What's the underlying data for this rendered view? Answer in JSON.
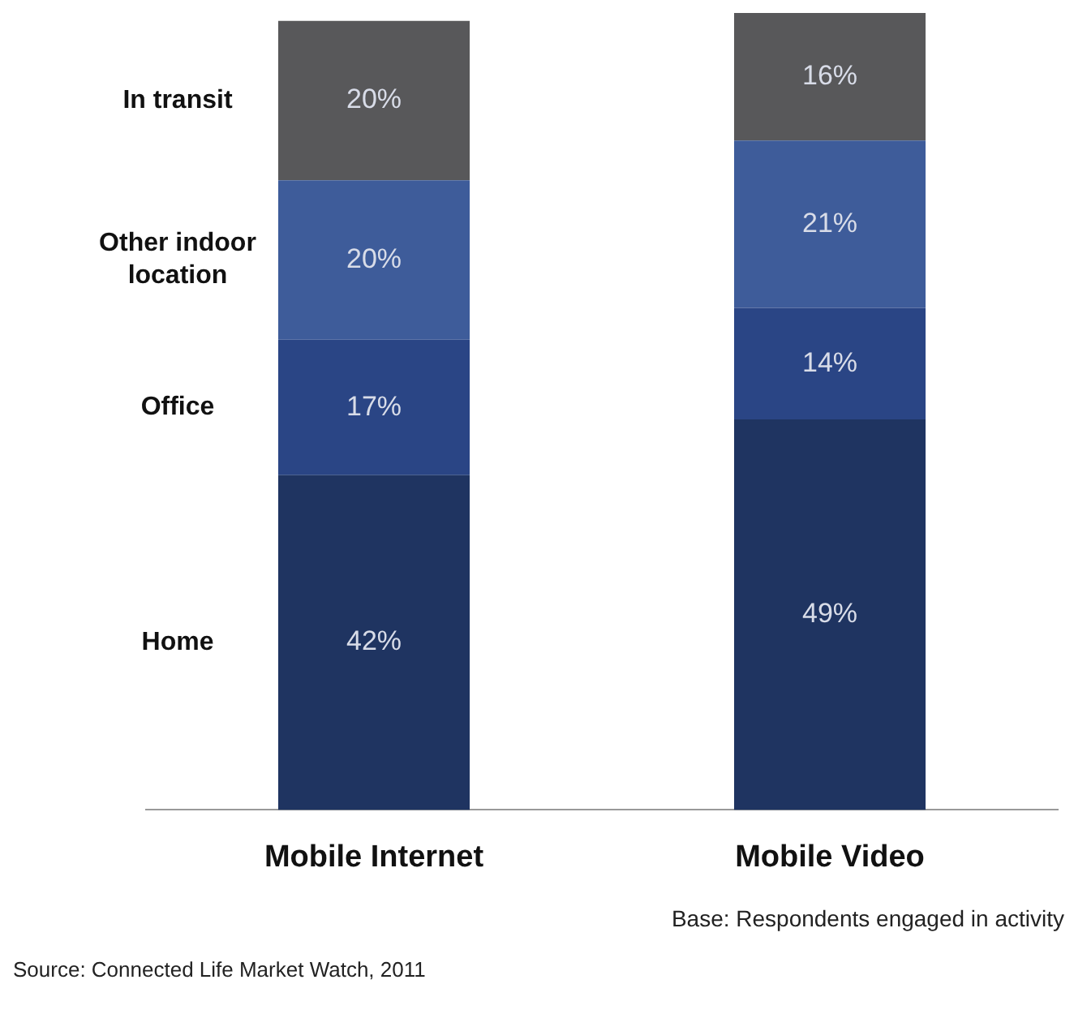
{
  "chart_data": {
    "type": "bar",
    "stacked": true,
    "categories": [
      "Mobile Internet",
      "Mobile Video"
    ],
    "series": [
      {
        "name": "Home",
        "color": "#1f3461",
        "values": [
          42,
          49
        ],
        "value_labels": [
          "42%",
          "49%"
        ]
      },
      {
        "name": "Office",
        "color": "#2a4585",
        "values": [
          17,
          14
        ],
        "value_labels": [
          "17%",
          "14%"
        ]
      },
      {
        "name": "Other indoor location",
        "color": "#3e5c9a",
        "values": [
          20,
          21
        ],
        "value_labels": [
          "20%",
          "21%"
        ]
      },
      {
        "name": "In transit",
        "color": "#58585a",
        "values": [
          20,
          16
        ],
        "value_labels": [
          "20%",
          "16%"
        ]
      }
    ],
    "ylim": [
      0,
      100
    ],
    "tick_labels": "x",
    "grid": false,
    "legend": false,
    "annotations": [
      "Base: Respondents engaged in activity",
      "Source: Connected Life Market Watch, 2011"
    ]
  }
}
